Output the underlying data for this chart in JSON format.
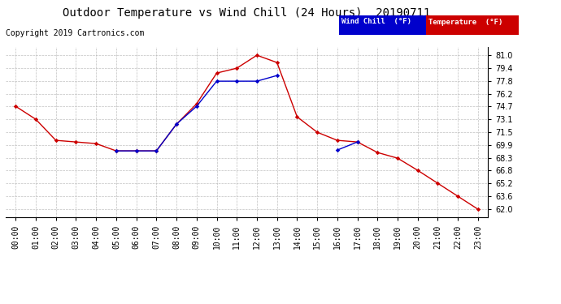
{
  "title": "Outdoor Temperature vs Wind Chill (24 Hours)  20190711",
  "copyright": "Copyright 2019 Cartronics.com",
  "legend_wind_chill": "Wind Chill  (°F)",
  "legend_temperature": "Temperature  (°F)",
  "hours": [
    "00:00",
    "01:00",
    "02:00",
    "03:00",
    "04:00",
    "05:00",
    "06:00",
    "07:00",
    "08:00",
    "09:00",
    "10:00",
    "11:00",
    "12:00",
    "13:00",
    "14:00",
    "15:00",
    "16:00",
    "17:00",
    "18:00",
    "19:00",
    "20:00",
    "21:00",
    "22:00",
    "23:00"
  ],
  "temperature": [
    74.7,
    73.1,
    70.5,
    70.3,
    70.1,
    69.2,
    69.2,
    69.2,
    72.5,
    75.0,
    78.8,
    79.4,
    81.0,
    80.1,
    73.4,
    71.5,
    70.5,
    70.3,
    69.0,
    68.3,
    66.8,
    65.2,
    63.6,
    62.0
  ],
  "wind_chill": [
    null,
    null,
    null,
    null,
    null,
    69.2,
    69.2,
    69.2,
    72.5,
    74.7,
    77.8,
    77.8,
    77.8,
    78.5,
    null,
    null,
    69.3,
    70.3,
    null,
    null,
    null,
    null,
    null,
    null
  ],
  "ylim_min": 61.0,
  "ylim_max": 82.0,
  "yticks": [
    62.0,
    63.6,
    65.2,
    66.8,
    68.3,
    69.9,
    71.5,
    73.1,
    74.7,
    76.2,
    77.8,
    79.4,
    81.0
  ],
  "bg_color": "#ffffff",
  "plot_bg_color": "#ffffff",
  "grid_color": "#b0b0b0",
  "temp_color": "#cc0000",
  "wind_color": "#0000cc",
  "title_fontsize": 10,
  "copyright_fontsize": 7,
  "tick_fontsize": 7,
  "legend_wind_bg": "#0000cc",
  "legend_temp_bg": "#cc0000"
}
